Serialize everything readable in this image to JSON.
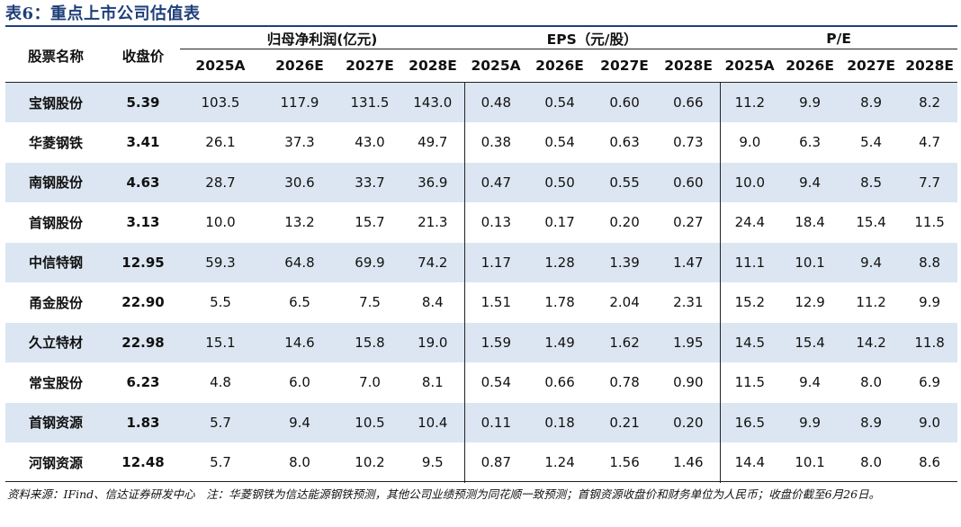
{
  "title": "表6：重点上市公司估值表",
  "header": {
    "stock_name": "股票名称",
    "close_price": "收盘价",
    "profit_group": "归母净利润(亿元)",
    "eps_group": "EPS（元/股）",
    "pe_group": "P/E",
    "years": [
      "2025A",
      "2026E",
      "2027E",
      "2028E"
    ]
  },
  "rows": [
    {
      "name": "宝钢股份",
      "price": "5.39",
      "profit": [
        "103.5",
        "117.9",
        "131.5",
        "143.0"
      ],
      "eps": [
        "0.48",
        "0.54",
        "0.60",
        "0.66"
      ],
      "pe": [
        "11.2",
        "9.9",
        "8.9",
        "8.2"
      ]
    },
    {
      "name": "华菱钢铁",
      "price": "3.41",
      "profit": [
        "26.1",
        "37.3",
        "43.0",
        "49.7"
      ],
      "eps": [
        "0.38",
        "0.54",
        "0.63",
        "0.73"
      ],
      "pe": [
        "9.0",
        "6.3",
        "5.4",
        "4.7"
      ]
    },
    {
      "name": "南钢股份",
      "price": "4.63",
      "profit": [
        "28.7",
        "30.6",
        "33.7",
        "36.9"
      ],
      "eps": [
        "0.47",
        "0.50",
        "0.55",
        "0.60"
      ],
      "pe": [
        "10.0",
        "9.4",
        "8.5",
        "7.7"
      ]
    },
    {
      "name": "首钢股份",
      "price": "3.13",
      "profit": [
        "10.0",
        "13.2",
        "15.7",
        "21.3"
      ],
      "eps": [
        "0.13",
        "0.17",
        "0.20",
        "0.27"
      ],
      "pe": [
        "24.4",
        "18.4",
        "15.4",
        "11.5"
      ]
    },
    {
      "name": "中信特钢",
      "price": "12.95",
      "profit": [
        "59.3",
        "64.8",
        "69.9",
        "74.2"
      ],
      "eps": [
        "1.17",
        "1.28",
        "1.39",
        "1.47"
      ],
      "pe": [
        "11.1",
        "10.1",
        "9.4",
        "8.8"
      ]
    },
    {
      "name": "甬金股份",
      "price": "22.90",
      "profit": [
        "5.5",
        "6.5",
        "7.5",
        "8.4"
      ],
      "eps": [
        "1.51",
        "1.78",
        "2.04",
        "2.31"
      ],
      "pe": [
        "15.2",
        "12.9",
        "11.2",
        "9.9"
      ]
    },
    {
      "name": "久立特材",
      "price": "22.98",
      "profit": [
        "15.1",
        "14.6",
        "15.8",
        "19.0"
      ],
      "eps": [
        "1.59",
        "1.49",
        "1.62",
        "1.95"
      ],
      "pe": [
        "14.5",
        "15.4",
        "14.2",
        "11.8"
      ]
    },
    {
      "name": "常宝股份",
      "price": "6.23",
      "profit": [
        "4.8",
        "6.0",
        "7.0",
        "8.1"
      ],
      "eps": [
        "0.54",
        "0.66",
        "0.78",
        "0.90"
      ],
      "pe": [
        "11.5",
        "9.4",
        "8.0",
        "6.9"
      ]
    },
    {
      "name": "首钢资源",
      "price": "1.83",
      "profit": [
        "5.7",
        "9.4",
        "10.5",
        "10.4"
      ],
      "eps": [
        "0.11",
        "0.18",
        "0.21",
        "0.20"
      ],
      "pe": [
        "16.5",
        "9.9",
        "8.9",
        "9.0"
      ]
    },
    {
      "name": "河钢资源",
      "price": "12.48",
      "profit": [
        "5.7",
        "8.0",
        "10.2",
        "9.5"
      ],
      "eps": [
        "0.87",
        "1.24",
        "1.56",
        "1.46"
      ],
      "pe": [
        "14.4",
        "10.1",
        "8.0",
        "8.6"
      ]
    }
  ],
  "note": "资料来源：IFind、信达证券研发中心　注：华菱钢铁为信达能源钢铁预测，其他公司业绩预测为同花顺一致预测；首钢资源收盘价和财务单位为人民币；收盘价截至6月26日。",
  "colors": {
    "title": "#1f3f7a",
    "shade": "#dce6f2"
  }
}
